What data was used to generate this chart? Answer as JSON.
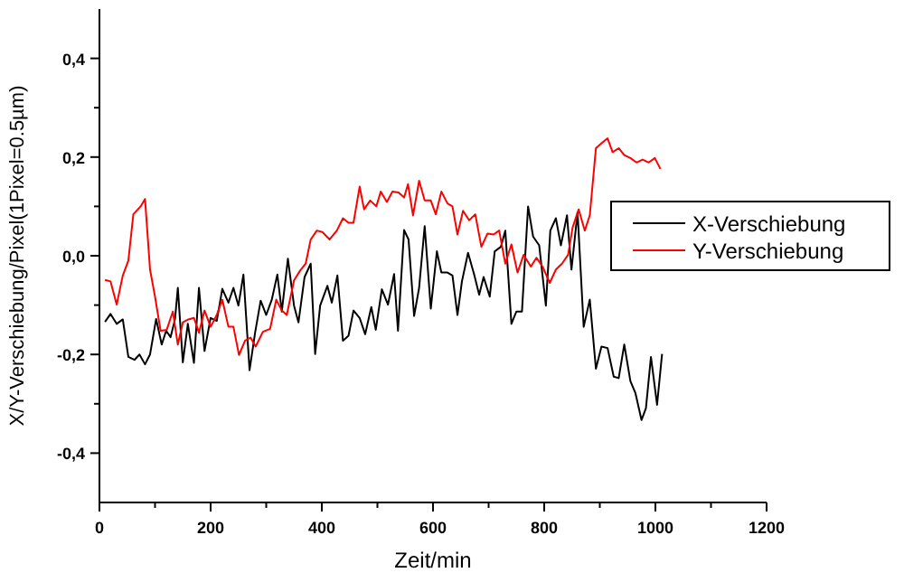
{
  "chart_data": {
    "type": "line",
    "xlabel": "Zeit/min",
    "ylabel": "X/Y-Verschiebung/Pixel(1Pixel=0.5µm)",
    "xlim": [
      0,
      1200
    ],
    "ylim": [
      -0.5,
      0.5
    ],
    "xticks": [
      0,
      {
        "value": 100,
        "label": null
      },
      200,
      {
        "value": 300,
        "label": null
      },
      400,
      {
        "value": 500,
        "label": null
      },
      600,
      {
        "value": 700,
        "label": null
      },
      800,
      {
        "value": 900,
        "label": null
      },
      1000,
      {
        "value": 1100,
        "label": null
      },
      1200
    ],
    "yticks": [
      {
        "value": -0.4,
        "label": "-0,4"
      },
      {
        "value": -0.3,
        "label": null
      },
      {
        "value": -0.2,
        "label": "-0,2"
      },
      {
        "value": -0.1,
        "label": null
      },
      {
        "value": 0,
        "label": "0,0"
      },
      {
        "value": 0.1,
        "label": null
      },
      {
        "value": 0.2,
        "label": "0,2"
      },
      {
        "value": 0.3,
        "label": null
      },
      {
        "value": 0.4,
        "label": "0,4"
      }
    ],
    "grid": false,
    "legend": "right",
    "marker": "none",
    "line_style": "solid",
    "series": [
      {
        "name": "X-Verschiebung",
        "color": "#000000",
        "x": [
          10,
          20,
          31,
          42,
          52,
          63,
          72,
          82,
          91,
          102,
          112,
          120,
          128,
          136,
          141,
          150,
          159,
          170,
          179,
          189,
          200,
          211,
          221,
          232,
          241,
          250,
          259,
          270,
          280,
          290,
          300,
          310,
          320,
          328,
          339,
          350,
          358,
          369,
          380,
          388,
          397,
          410,
          418,
          428,
          438,
          448,
          457,
          468,
          478,
          489,
          497,
          508,
          519,
          530,
          537,
          548,
          556,
          566,
          575,
          585,
          596,
          607,
          615,
          626,
          635,
          644,
          652,
          663,
          674,
          683,
          691,
          702,
          711,
          722,
          730,
          741,
          750,
          760,
          771,
          780,
          791,
          803,
          811,
          821,
          830,
          841,
          849,
          860,
          871,
          882,
          893,
          903,
          914,
          925,
          934,
          944,
          955,
          964,
          975,
          983,
          992,
          1003,
          1012
        ],
        "values": [
          -0.134,
          -0.118,
          -0.138,
          -0.129,
          -0.205,
          -0.211,
          -0.2,
          -0.22,
          -0.2,
          -0.128,
          -0.18,
          -0.152,
          -0.165,
          -0.128,
          -0.065,
          -0.216,
          -0.138,
          -0.217,
          -0.065,
          -0.193,
          -0.126,
          -0.132,
          -0.067,
          -0.095,
          -0.065,
          -0.101,
          -0.038,
          -0.232,
          -0.156,
          -0.091,
          -0.12,
          -0.089,
          -0.038,
          -0.113,
          -0.006,
          -0.101,
          -0.135,
          -0.043,
          -0.016,
          -0.199,
          -0.101,
          -0.061,
          -0.095,
          -0.04,
          -0.172,
          -0.162,
          -0.111,
          -0.126,
          -0.159,
          -0.104,
          -0.15,
          -0.068,
          -0.099,
          -0.037,
          -0.152,
          0.052,
          0.033,
          -0.122,
          -0.065,
          0.06,
          -0.107,
          0.009,
          -0.034,
          -0.034,
          -0.04,
          -0.12,
          -0.052,
          0.006,
          -0.038,
          -0.079,
          -0.043,
          -0.083,
          0.009,
          0.018,
          0.051,
          -0.138,
          -0.113,
          -0.113,
          0.1,
          0.039,
          0.021,
          -0.101,
          0.051,
          0.076,
          0.021,
          0.082,
          -0.028,
          0.088,
          -0.144,
          -0.089,
          -0.229,
          -0.184,
          -0.187,
          -0.245,
          -0.248,
          -0.18,
          -0.254,
          -0.278,
          -0.333,
          -0.309,
          -0.205,
          -0.302,
          -0.199
        ]
      },
      {
        "name": "Y-Verschiebung",
        "color": "#ff0000",
        "x": [
          10,
          20,
          31,
          42,
          52,
          61,
          74,
          82,
          91,
          100,
          110,
          121,
          132,
          141,
          150,
          160,
          170,
          179,
          189,
          200,
          211,
          221,
          232,
          241,
          251,
          262,
          272,
          281,
          294,
          307,
          318,
          328,
          337,
          350,
          361,
          371,
          380,
          391,
          401,
          414,
          427,
          438,
          448,
          457,
          468,
          476,
          487,
          498,
          506,
          517,
          527,
          538,
          548,
          555,
          564,
          575,
          585,
          596,
          605,
          615,
          626,
          635,
          644,
          654,
          665,
          676,
          687,
          698,
          709,
          719,
          730,
          741,
          752,
          763,
          776,
          786,
          797,
          810,
          821,
          832,
          843,
          851,
          862,
          873,
          882,
          893,
          903,
          914,
          923,
          934,
          944,
          955,
          966,
          977,
          988,
          999,
          1009
        ],
        "values": [
          -0.049,
          -0.052,
          -0.099,
          -0.04,
          -0.01,
          0.084,
          0.1,
          0.115,
          -0.028,
          -0.083,
          -0.152,
          -0.15,
          -0.113,
          -0.18,
          -0.135,
          -0.129,
          -0.126,
          -0.156,
          -0.111,
          -0.144,
          -0.12,
          -0.089,
          -0.144,
          -0.144,
          -0.201,
          -0.172,
          -0.166,
          -0.184,
          -0.154,
          -0.148,
          -0.089,
          -0.111,
          -0.12,
          -0.05,
          -0.03,
          -0.016,
          0.033,
          0.051,
          0.048,
          0.033,
          0.051,
          0.076,
          0.067,
          0.067,
          0.14,
          0.094,
          0.112,
          0.1,
          0.13,
          0.109,
          0.13,
          0.128,
          0.118,
          0.145,
          0.082,
          0.152,
          0.112,
          0.112,
          0.084,
          0.13,
          0.106,
          0.1,
          0.043,
          0.091,
          0.072,
          0.084,
          0.018,
          0.045,
          0.043,
          0.051,
          -0.016,
          0.023,
          -0.034,
          0.002,
          -0.022,
          -0.004,
          -0.022,
          -0.055,
          -0.028,
          -0.016,
          0.002,
          0.057,
          0.094,
          0.051,
          0.082,
          0.218,
          0.228,
          0.238,
          0.21,
          0.218,
          0.204,
          0.198,
          0.189,
          0.195,
          0.189,
          0.198,
          0.176
        ]
      }
    ]
  }
}
